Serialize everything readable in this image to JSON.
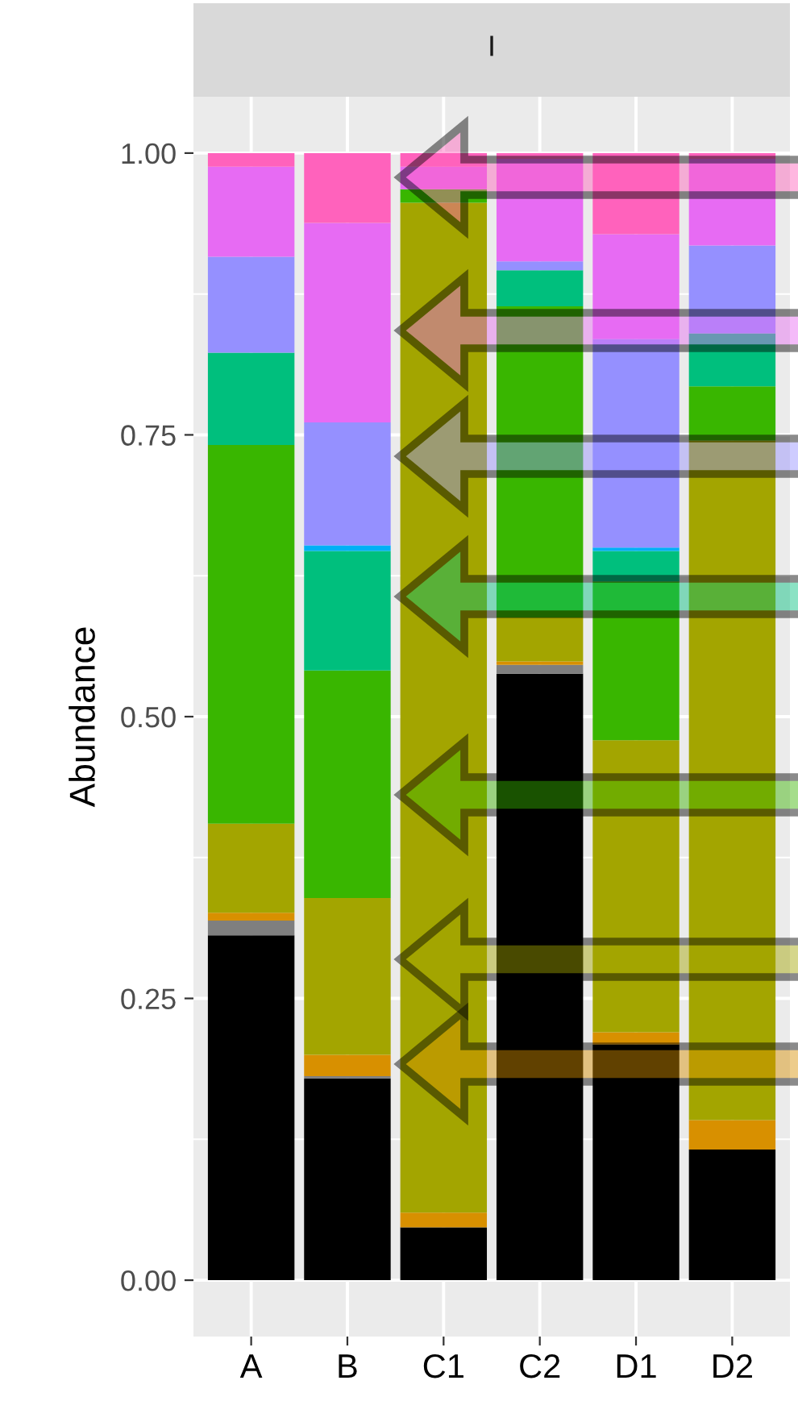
{
  "chart_data": {
    "type": "bar",
    "stacked": true,
    "title": "I",
    "ylabel": "Abundance",
    "categories": [
      "A",
      "B",
      "C1",
      "C2",
      "D1",
      "D2"
    ],
    "series": [
      {
        "color": "#000000",
        "values": [
          0.306,
          0.179,
          0.047,
          0.538,
          0.209,
          0.116
        ]
      },
      {
        "color": "#7f7f7f",
        "values": [
          0.013,
          0.002,
          0,
          0.008,
          0,
          0
        ]
      },
      {
        "color": "#d89000",
        "values": [
          0.007,
          0.019,
          0.013,
          0.003,
          0.011,
          0.026
        ]
      },
      {
        "color": "#a3a500",
        "values": [
          0.079,
          0.139,
          0.896,
          0.039,
          0.259,
          0.603
        ]
      },
      {
        "color": "#39b600",
        "values": [
          0.336,
          0.202,
          0.012,
          0.276,
          0.141,
          0.048
        ]
      },
      {
        "color": "#00bf7d",
        "values": [
          0.082,
          0.106,
          0,
          0.032,
          0.027,
          0.047
        ]
      },
      {
        "color": "#00b0f6",
        "values": [
          0,
          0.005,
          0,
          0,
          0.003,
          0
        ]
      },
      {
        "color": "#9590ff",
        "values": [
          0.085,
          0.109,
          0,
          0.008,
          0.185,
          0.078
        ]
      },
      {
        "color": "#e76bf3",
        "values": [
          0.08,
          0.177,
          0.02,
          0.091,
          0.093,
          0.077
        ]
      },
      {
        "color": "#ff62bc",
        "values": [
          0.012,
          0.062,
          0.012,
          0.005,
          0.072,
          0.005
        ]
      }
    ],
    "ylim": [
      -0.05,
      1.05
    ],
    "yticks": [
      {
        "value": 0,
        "label": "0.00"
      },
      {
        "value": 0.25,
        "label": "0.25"
      },
      {
        "value": 0.5,
        "label": "0.50"
      },
      {
        "value": 0.75,
        "label": "0.75"
      },
      {
        "value": 1,
        "label": "1.00"
      }
    ],
    "grid": true,
    "legend": false
  }
}
